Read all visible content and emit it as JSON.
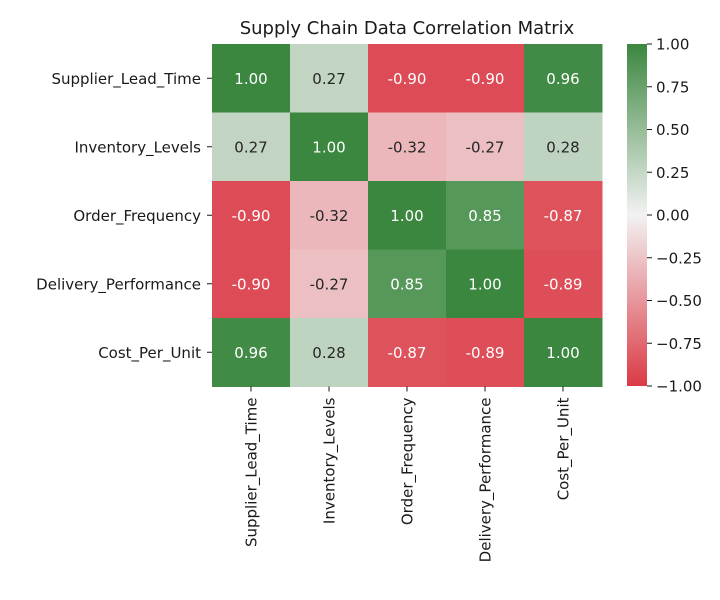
{
  "chart_data": {
    "type": "heatmap",
    "title": "Supply Chain Data Correlation Matrix",
    "xlabel": "",
    "ylabel": "",
    "rows": [
      "Supplier_Lead_Time",
      "Inventory_Levels",
      "Order_Frequency",
      "Delivery_Performance",
      "Cost_Per_Unit"
    ],
    "columns": [
      "Supplier_Lead_Time",
      "Inventory_Levels",
      "Order_Frequency",
      "Delivery_Performance",
      "Cost_Per_Unit"
    ],
    "values": [
      [
        1.0,
        0.27,
        -0.9,
        -0.9,
        0.96
      ],
      [
        0.27,
        1.0,
        -0.32,
        -0.27,
        0.28
      ],
      [
        -0.9,
        -0.32,
        1.0,
        0.85,
        -0.87
      ],
      [
        -0.9,
        -0.27,
        0.85,
        1.0,
        -0.89
      ],
      [
        0.96,
        0.28,
        -0.87,
        -0.89,
        1.0
      ]
    ],
    "cell_labels": [
      [
        "1.00",
        "0.27",
        "-0.90",
        "-0.90",
        "0.96"
      ],
      [
        "0.27",
        "1.00",
        "-0.32",
        "-0.27",
        "0.28"
      ],
      [
        "-0.90",
        "-0.32",
        "1.00",
        "0.85",
        "-0.87"
      ],
      [
        "-0.90",
        "-0.27",
        "0.85",
        "1.00",
        "-0.89"
      ],
      [
        "0.96",
        "0.28",
        "-0.87",
        "-0.89",
        "1.00"
      ]
    ],
    "vmin": -1.0,
    "vmax": 1.0,
    "colormap": {
      "negative": "#db3a45",
      "center": "#f2f2f2",
      "positive": "#3b873f"
    },
    "colorbar_ticks": [
      1.0,
      0.75,
      0.5,
      0.25,
      0.0,
      -0.25,
      -0.5,
      -0.75,
      -1.0
    ],
    "colorbar_tick_labels": [
      "1.00",
      "0.75",
      "0.50",
      "0.25",
      "0.00",
      "−0.25",
      "−0.50",
      "−0.75",
      "−1.00"
    ],
    "grid": false,
    "legend": "colorbar-right"
  }
}
